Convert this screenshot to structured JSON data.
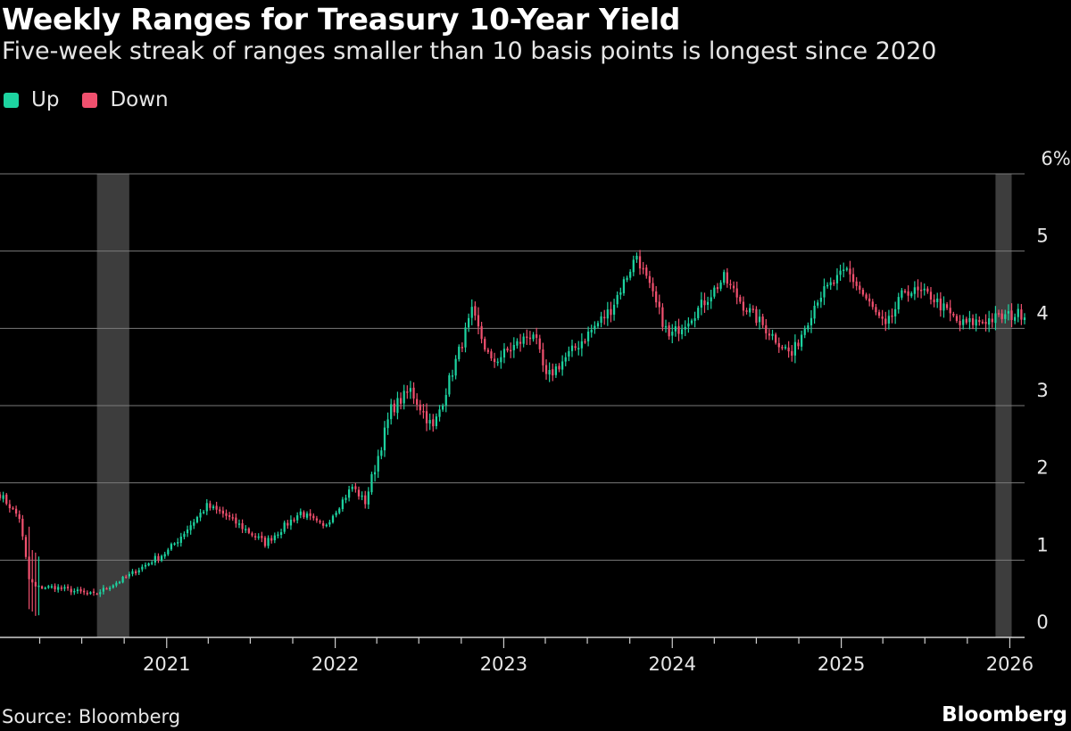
{
  "header": {
    "title": "Weekly Ranges for Treasury 10-Year Yield",
    "subtitle": "Five-week streak of ranges smaller than 10 basis points is longest since 2020"
  },
  "legend": {
    "items": [
      {
        "label": "Up",
        "color": "#1dd3a0"
      },
      {
        "label": "Down",
        "color": "#f0506e"
      }
    ]
  },
  "footer": {
    "source": "Source: Bloomberg",
    "brand": "Bloomberg"
  },
  "chart_data": {
    "type": "candlestick",
    "title": "Weekly Ranges for Treasury 10-Year Yield",
    "subtitle": "Five-week streak of ranges smaller than 10 basis points is longest since 2020",
    "xlabel": "",
    "ylabel": "",
    "y_unit": "%",
    "ylim": [
      0,
      6
    ],
    "y_ticks": [
      0,
      1,
      2,
      3,
      4,
      5,
      6
    ],
    "y_tick_labels": [
      "0",
      "1",
      "2",
      "3",
      "4",
      "5",
      "6%"
    ],
    "x_range": [
      "2020-01-06",
      "2026-02-02"
    ],
    "x_ticks": [
      "2021-01-01",
      "2022-01-01",
      "2023-01-01",
      "2024-01-01",
      "2025-01-01",
      "2026-01-01"
    ],
    "x_tick_labels": [
      "2021",
      "2022",
      "2023",
      "2024",
      "2025",
      "2026"
    ],
    "grid": true,
    "legend_position": "top-left",
    "colors": {
      "up": "#1dd3a0",
      "down": "#f0506e",
      "highlight": "#3d3d3d"
    },
    "highlight_ranges": [
      {
        "start": "2020-08-03",
        "end": "2020-10-12"
      },
      {
        "start": "2025-12-01",
        "end": "2026-01-05"
      }
    ],
    "weekly_close_anchors": [
      {
        "date": "2020-01-06",
        "close": 1.85
      },
      {
        "date": "2020-02-17",
        "close": 1.55
      },
      {
        "date": "2020-03-09",
        "close": 0.75
      },
      {
        "date": "2020-03-23",
        "close": 0.65
      },
      {
        "date": "2020-05-04",
        "close": 0.65
      },
      {
        "date": "2020-07-27",
        "close": 0.55
      },
      {
        "date": "2020-10-05",
        "close": 0.78
      },
      {
        "date": "2021-01-04",
        "close": 1.12
      },
      {
        "date": "2021-03-29",
        "close": 1.7
      },
      {
        "date": "2021-05-03",
        "close": 1.6
      },
      {
        "date": "2021-08-02",
        "close": 1.22
      },
      {
        "date": "2021-10-18",
        "close": 1.62
      },
      {
        "date": "2021-12-06",
        "close": 1.42
      },
      {
        "date": "2022-02-07",
        "close": 1.95
      },
      {
        "date": "2022-03-07",
        "close": 1.75
      },
      {
        "date": "2022-05-02",
        "close": 2.95
      },
      {
        "date": "2022-06-13",
        "close": 3.2
      },
      {
        "date": "2022-08-01",
        "close": 2.7
      },
      {
        "date": "2022-10-24",
        "close": 4.2
      },
      {
        "date": "2022-12-05",
        "close": 3.55
      },
      {
        "date": "2023-03-06",
        "close": 3.95
      },
      {
        "date": "2023-04-03",
        "close": 3.35
      },
      {
        "date": "2023-06-05",
        "close": 3.75
      },
      {
        "date": "2023-08-21",
        "close": 4.25
      },
      {
        "date": "2023-10-16",
        "close": 4.95
      },
      {
        "date": "2023-12-25",
        "close": 3.88
      },
      {
        "date": "2024-02-26",
        "close": 4.25
      },
      {
        "date": "2024-04-22",
        "close": 4.65
      },
      {
        "date": "2024-06-03",
        "close": 4.3
      },
      {
        "date": "2024-09-16",
        "close": 3.65
      },
      {
        "date": "2024-11-11",
        "close": 4.4
      },
      {
        "date": "2025-01-13",
        "close": 4.75
      },
      {
        "date": "2025-04-07",
        "close": 4.0
      },
      {
        "date": "2025-05-19",
        "close": 4.5
      },
      {
        "date": "2025-07-14",
        "close": 4.42
      },
      {
        "date": "2025-09-15",
        "close": 4.05
      },
      {
        "date": "2025-11-03",
        "close": 4.1
      },
      {
        "date": "2026-02-02",
        "close": 4.2
      }
    ]
  }
}
